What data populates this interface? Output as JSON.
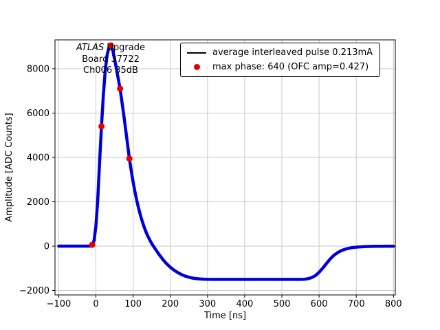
{
  "chart_data": {
    "type": "line",
    "title": "",
    "xlabel": "Time [ns]",
    "ylabel": "Amplitude [ADC Counts]",
    "xlim": [
      -110,
      805
    ],
    "ylim": [
      -2200,
      9300
    ],
    "xticks": [
      -100,
      0,
      100,
      200,
      300,
      400,
      500,
      600,
      700,
      800
    ],
    "xtick_labels": [
      "−100",
      "0",
      "100",
      "200",
      "300",
      "400",
      "500",
      "600",
      "700",
      "800"
    ],
    "yticks": [
      -2000,
      0,
      2000,
      4000,
      6000,
      8000
    ],
    "ytick_labels": [
      "−2000",
      "0",
      "2000",
      "4000",
      "6000",
      "8000"
    ],
    "grid": true,
    "grid_color": "#c9c9c9",
    "series": [
      {
        "name": "average interleaved pulse 0.213mA",
        "type": "line",
        "line_color": "#000000",
        "marker_color": "#0000dd",
        "points": [
          [
            -100,
            0
          ],
          [
            -95,
            0
          ],
          [
            -90,
            0
          ],
          [
            -85,
            0
          ],
          [
            -80,
            0
          ],
          [
            -75,
            0
          ],
          [
            -70,
            0
          ],
          [
            -65,
            0
          ],
          [
            -60,
            0
          ],
          [
            -55,
            0
          ],
          [
            -50,
            0
          ],
          [
            -45,
            0
          ],
          [
            -40,
            0
          ],
          [
            -35,
            0
          ],
          [
            -30,
            0
          ],
          [
            -25,
            0
          ],
          [
            -20,
            0
          ],
          [
            -15,
            5
          ],
          [
            -10,
            60
          ],
          [
            -5,
            250
          ],
          [
            0,
            900
          ],
          [
            5,
            2100
          ],
          [
            10,
            3800
          ],
          [
            15,
            5400
          ],
          [
            20,
            6800
          ],
          [
            25,
            7900
          ],
          [
            30,
            8600
          ],
          [
            35,
            8950
          ],
          [
            40,
            9050
          ],
          [
            45,
            8850
          ],
          [
            50,
            8450
          ],
          [
            55,
            8000
          ],
          [
            60,
            7550
          ],
          [
            65,
            7100
          ],
          [
            70,
            6500
          ],
          [
            75,
            5900
          ],
          [
            80,
            5250
          ],
          [
            85,
            4600
          ],
          [
            90,
            3950
          ],
          [
            95,
            3400
          ],
          [
            100,
            2900
          ],
          [
            105,
            2450
          ],
          [
            110,
            2050
          ],
          [
            115,
            1700
          ],
          [
            120,
            1380
          ],
          [
            125,
            1100
          ],
          [
            130,
            850
          ],
          [
            135,
            630
          ],
          [
            140,
            440
          ],
          [
            145,
            270
          ],
          [
            150,
            120
          ],
          [
            155,
            -10
          ],
          [
            160,
            -140
          ],
          [
            165,
            -260
          ],
          [
            170,
            -380
          ],
          [
            175,
            -490
          ],
          [
            180,
            -600
          ],
          [
            185,
            -700
          ],
          [
            190,
            -790
          ],
          [
            195,
            -870
          ],
          [
            200,
            -950
          ],
          [
            210,
            -1080
          ],
          [
            220,
            -1190
          ],
          [
            230,
            -1280
          ],
          [
            240,
            -1350
          ],
          [
            250,
            -1400
          ],
          [
            260,
            -1440
          ],
          [
            270,
            -1465
          ],
          [
            280,
            -1480
          ],
          [
            290,
            -1490
          ],
          [
            300,
            -1495
          ],
          [
            320,
            -1500
          ],
          [
            340,
            -1500
          ],
          [
            360,
            -1500
          ],
          [
            380,
            -1500
          ],
          [
            400,
            -1500
          ],
          [
            420,
            -1500
          ],
          [
            440,
            -1500
          ],
          [
            460,
            -1500
          ],
          [
            480,
            -1500
          ],
          [
            500,
            -1500
          ],
          [
            520,
            -1500
          ],
          [
            540,
            -1500
          ],
          [
            550,
            -1499
          ],
          [
            560,
            -1492
          ],
          [
            570,
            -1470
          ],
          [
            580,
            -1420
          ],
          [
            590,
            -1330
          ],
          [
            600,
            -1180
          ],
          [
            610,
            -990
          ],
          [
            620,
            -780
          ],
          [
            630,
            -580
          ],
          [
            640,
            -410
          ],
          [
            650,
            -290
          ],
          [
            660,
            -200
          ],
          [
            670,
            -140
          ],
          [
            680,
            -95
          ],
          [
            690,
            -65
          ],
          [
            700,
            -45
          ],
          [
            710,
            -32
          ],
          [
            720,
            -22
          ],
          [
            730,
            -16
          ],
          [
            740,
            -11
          ],
          [
            750,
            -8
          ],
          [
            760,
            -6
          ],
          [
            770,
            -4
          ],
          [
            780,
            -3
          ],
          [
            790,
            -2
          ],
          [
            800,
            -1
          ]
        ]
      }
    ],
    "scatter": {
      "name": "max phase: 640 (OFC amp=0.427)",
      "color": "#e50000",
      "points": [
        [
          -10,
          60
        ],
        [
          15,
          5400
        ],
        [
          40,
          9050
        ],
        [
          65,
          7100
        ],
        [
          90,
          3950
        ]
      ]
    },
    "legend": {
      "position": "upper right",
      "entries": [
        {
          "type": "line",
          "color": "#000000",
          "label": "average interleaved pulse 0.213mA"
        },
        {
          "type": "dot",
          "color": "#e50000",
          "label": "max phase: 640 (OFC amp=0.427)"
        }
      ]
    },
    "annotation": {
      "italic": "ATLAS",
      "line1_rest": " Upgrade",
      "line2": "Board 37722",
      "line3": "Ch006 35dB"
    }
  }
}
